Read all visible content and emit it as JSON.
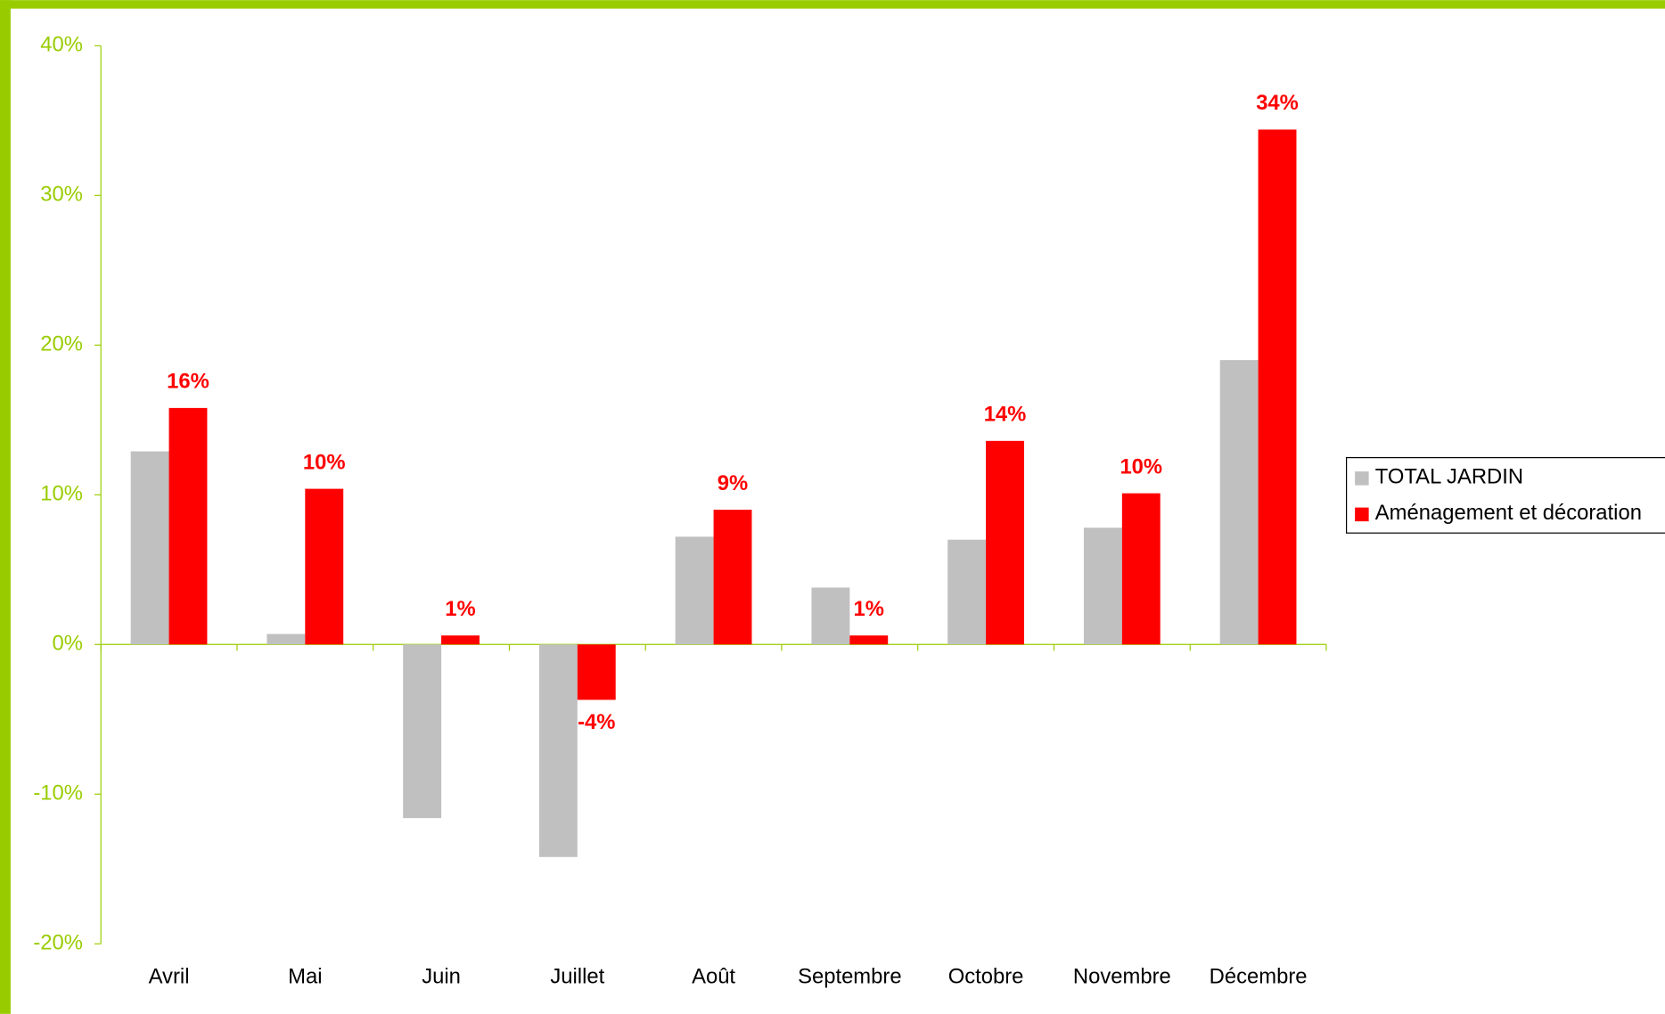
{
  "chart_data": {
    "type": "bar",
    "categories": [
      "Avril",
      "Mai",
      "Juin",
      "Juillet",
      "Août",
      "Septembre",
      "Octobre",
      "Novembre",
      "Décembre"
    ],
    "series": [
      {
        "name": "TOTAL JARDIN",
        "color": "#c0c0c0",
        "values": [
          12.9,
          0.7,
          -11.6,
          -14.2,
          7.2,
          3.8,
          7.0,
          7.8,
          19.0
        ]
      },
      {
        "name": "Aménagement et décoration",
        "color": "#ff0000",
        "values": [
          15.8,
          10.4,
          0.6,
          -3.7,
          9.0,
          0.6,
          13.6,
          10.1,
          34.4
        ],
        "value_labels": [
          "16%",
          "10%",
          "1%",
          "-4%",
          "9%",
          "1%",
          "14%",
          "10%",
          "34%"
        ]
      }
    ],
    "ylim": [
      -20,
      40
    ],
    "yticks": [
      {
        "value": -20,
        "label": "-20%"
      },
      {
        "value": -10,
        "label": "-10%"
      },
      {
        "value": 0,
        "label": "0%"
      },
      {
        "value": 10,
        "label": "10%"
      },
      {
        "value": 20,
        "label": "20%"
      },
      {
        "value": 30,
        "label": "30%"
      },
      {
        "value": 40,
        "label": "40%"
      }
    ],
    "legend": "right"
  }
}
